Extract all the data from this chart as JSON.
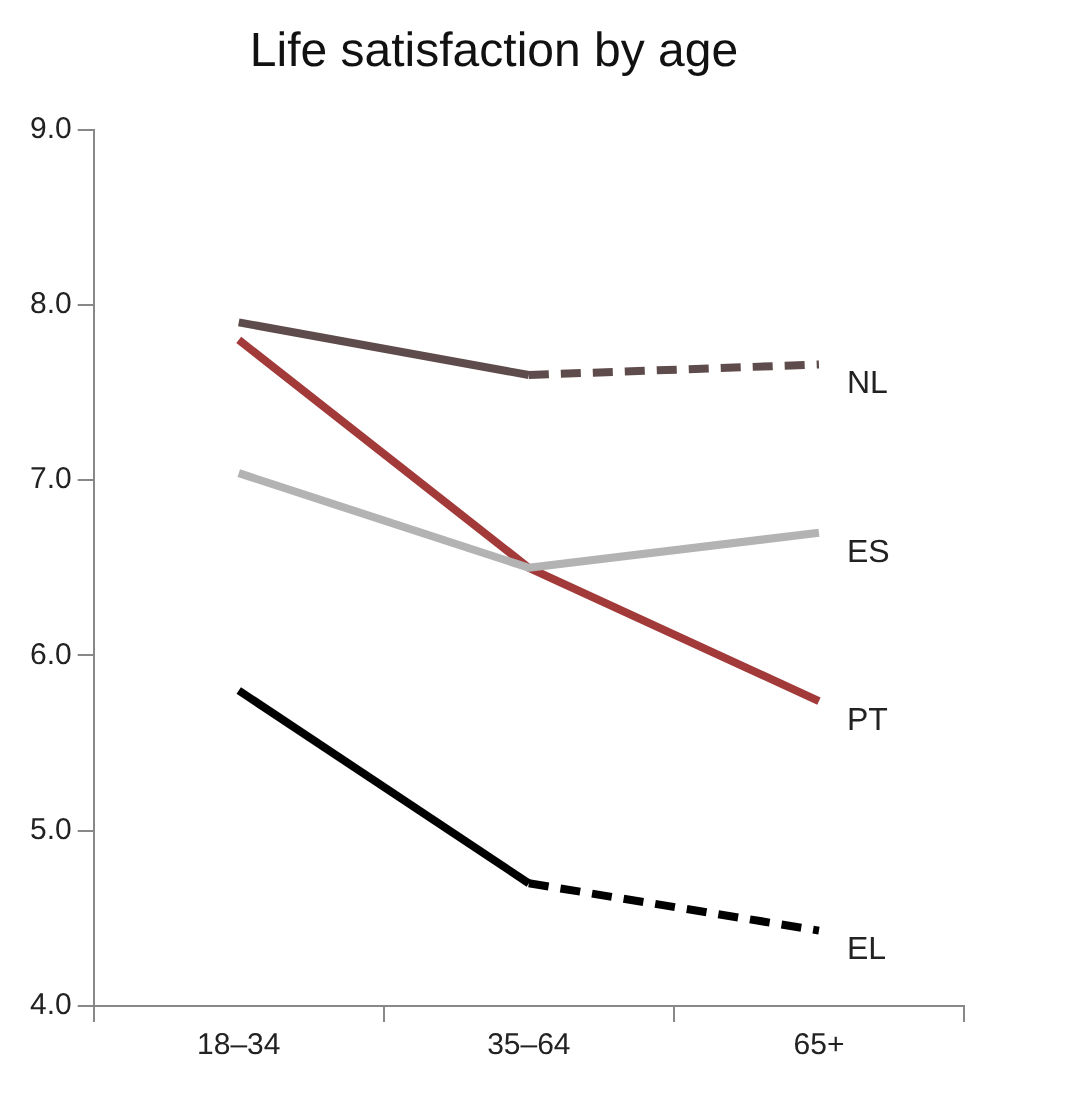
{
  "chart_data": {
    "type": "line",
    "title": "Life satisfaction by age",
    "categories": [
      "18–34",
      "35–64",
      "65+"
    ],
    "series": [
      {
        "color": "#5e4b4b",
        "values": [
          7.9,
          7.6,
          null
        ],
        "line_style": "solid"
      },
      {
        "name": "NL",
        "color": "#5e4b4b",
        "values": [
          null,
          7.6,
          7.66
        ],
        "line_style": "dashed"
      },
      {
        "name": "ES",
        "color": "#b3b3b3",
        "values": [
          7.04,
          6.5,
          6.7
        ],
        "line_style": "solid"
      },
      {
        "name": "PT",
        "color": "#a33a3a",
        "values": [
          7.8,
          6.5,
          5.74
        ],
        "line_style": "solid"
      },
      {
        "color": "#000000",
        "values": [
          5.8,
          4.7,
          null
        ],
        "line_style": "solid"
      },
      {
        "name": "EL",
        "color": "#000000",
        "values": [
          null,
          4.7,
          4.43
        ],
        "line_style": "dashed"
      }
    ],
    "ylim": [
      4,
      9
    ],
    "yticks": [
      {
        "value": 4,
        "label": "4.0"
      },
      {
        "value": 5,
        "label": "5.0"
      },
      {
        "value": 6,
        "label": "6.0"
      },
      {
        "value": 7,
        "label": "7.0"
      },
      {
        "value": 8,
        "label": "8.0"
      },
      {
        "value": 9,
        "label": "9.0"
      }
    ],
    "grid": false,
    "legend": false,
    "marker": "none"
  }
}
